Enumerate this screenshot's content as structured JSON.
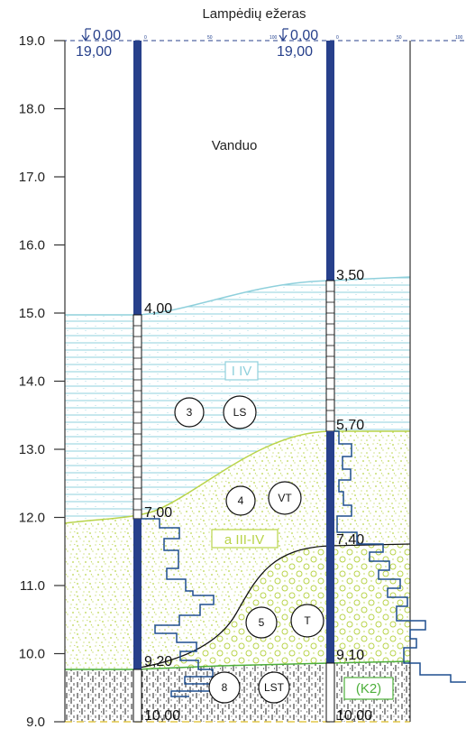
{
  "title": "Lampėdių ežeras",
  "water_label": "Vanduo",
  "y_axis": {
    "ticks": [
      "19.0",
      "18.0",
      "17.0",
      "16.0",
      "15.0",
      "14.0",
      "13.0",
      "12.0",
      "11.0",
      "10.0",
      "9.0"
    ]
  },
  "boreholes": [
    {
      "top_value": "0,00",
      "top_elevation": "19,00",
      "depths": [
        "4,00",
        "7,00",
        "9,20",
        "10,00"
      ],
      "scale_ticks": [
        "0",
        "50",
        "100"
      ]
    },
    {
      "top_value": "0,00",
      "top_elevation": "19,00",
      "depths": [
        "3,50",
        "5,70",
        "7,40",
        "9,10",
        "10,00"
      ],
      "scale_ticks": [
        "0",
        "50",
        "100"
      ]
    }
  ],
  "layer_codes": [
    "I IV",
    "a III-IV",
    "(K2)"
  ],
  "layer_ids": [
    {
      "number": "3",
      "code": "LS"
    },
    {
      "number": "4",
      "code": "VT"
    },
    {
      "number": "5",
      "code": "T"
    },
    {
      "number": "8",
      "code": "LST"
    }
  ],
  "colors": {
    "lake_sediment": "#8fd0dc",
    "glacial": "#b9d44a",
    "bedrock_code": "#4caf3a",
    "borehole": "#27408b",
    "grid": "#333333"
  }
}
